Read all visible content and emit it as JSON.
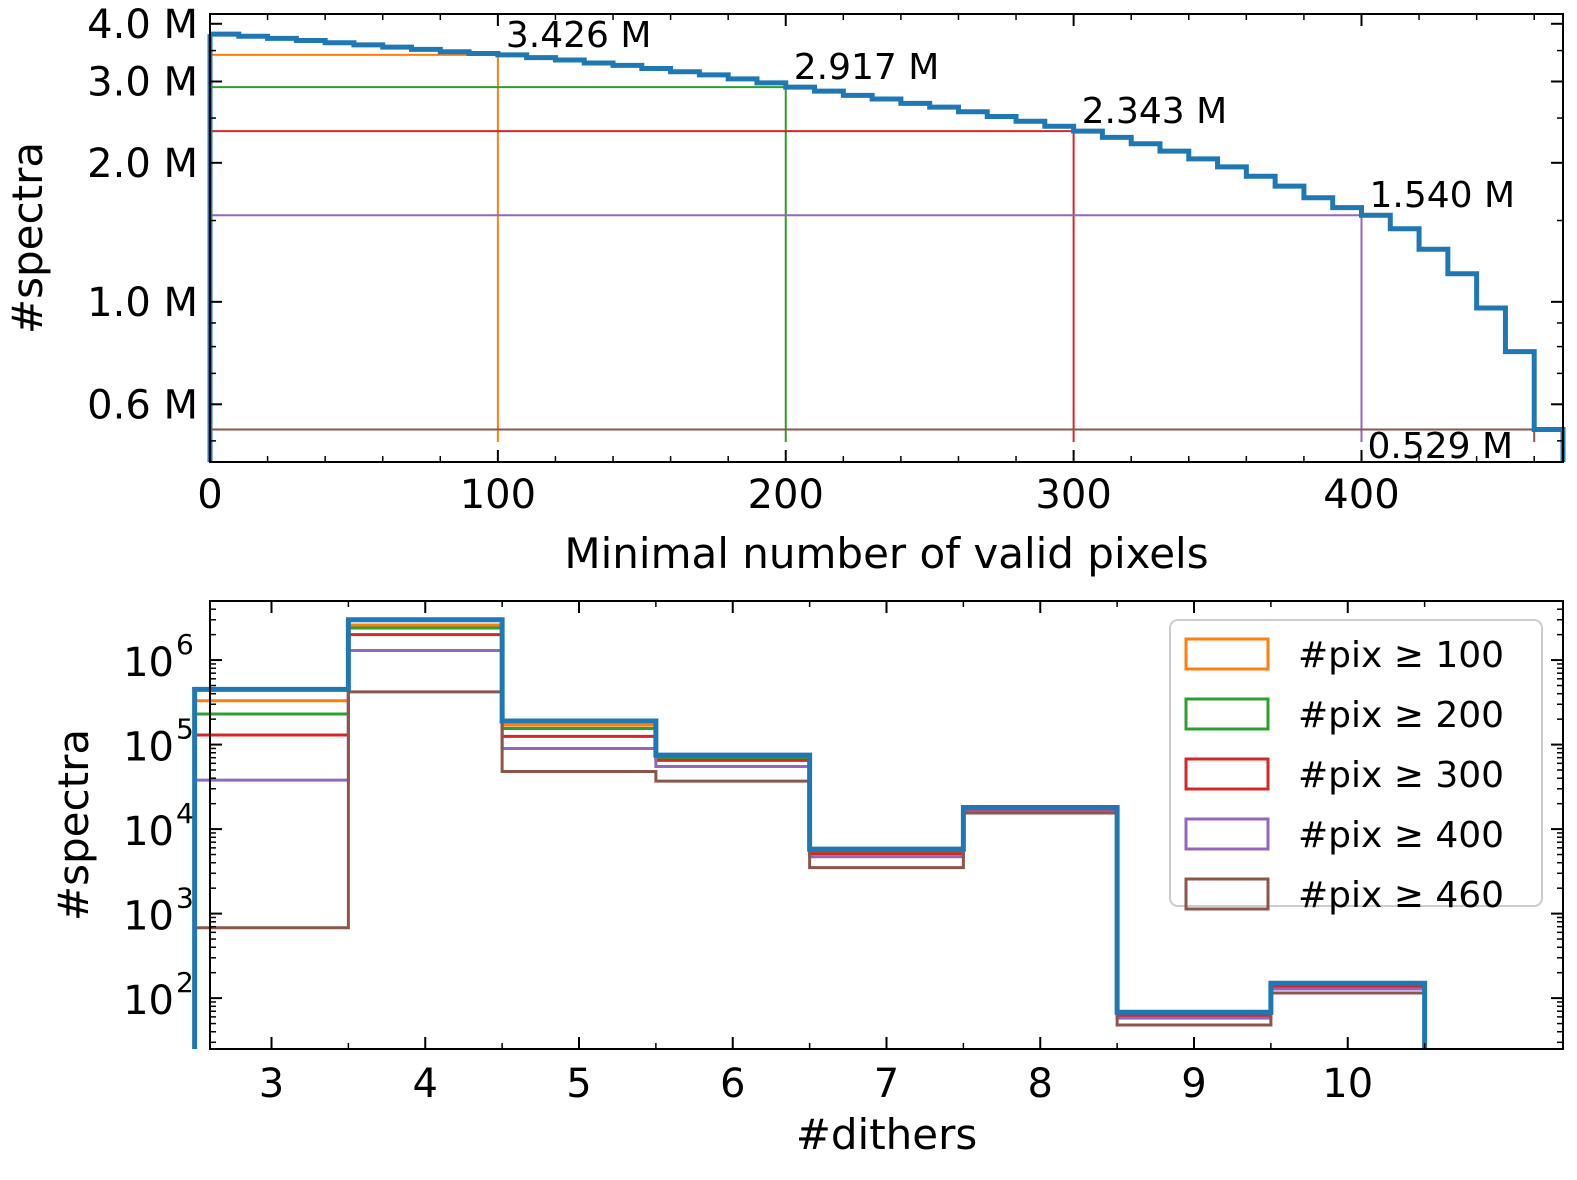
{
  "colors": {
    "all": "#1f77b4",
    "pix100": "#ff7f0e",
    "pix200": "#2ca02c",
    "pix300": "#d62728",
    "pix400": "#9467bd",
    "pix460": "#8c564b"
  },
  "chart_data": [
    {
      "type": "line",
      "step": true,
      "xlabel": "Minimal number of valid pixels",
      "ylabel": "#spectra",
      "xlim": [
        0,
        470
      ],
      "ylim": [
        0.45,
        4.2
      ],
      "yscale": "log",
      "xticks": [
        "0",
        "100",
        "200",
        "300",
        "400"
      ],
      "yticks": [
        "0.6 M",
        "1.0 M",
        "2.0 M",
        "3.0 M",
        "4.0 M"
      ],
      "series": [
        {
          "color_key": "all",
          "x": [
            0,
            10,
            20,
            30,
            40,
            50,
            60,
            70,
            80,
            90,
            100,
            110,
            120,
            130,
            140,
            150,
            160,
            170,
            180,
            190,
            200,
            210,
            220,
            230,
            240,
            250,
            260,
            270,
            280,
            290,
            300,
            310,
            320,
            330,
            340,
            350,
            360,
            370,
            380,
            390,
            400,
            410,
            420,
            430,
            440,
            450,
            460,
            470
          ],
          "y": [
            3.8,
            3.76,
            3.72,
            3.68,
            3.64,
            3.6,
            3.56,
            3.52,
            3.48,
            3.45,
            3.426,
            3.38,
            3.34,
            3.29,
            3.25,
            3.2,
            3.15,
            3.1,
            3.04,
            2.98,
            2.917,
            2.86,
            2.8,
            2.75,
            2.69,
            2.64,
            2.58,
            2.52,
            2.46,
            2.4,
            2.343,
            2.27,
            2.2,
            2.12,
            2.04,
            1.96,
            1.87,
            1.78,
            1.68,
            1.6,
            1.54,
            1.44,
            1.3,
            1.15,
            0.97,
            0.78,
            0.529,
            0.529
          ]
        }
      ],
      "thresholds": [
        {
          "x": 100,
          "y": 3.426,
          "label": "3.426 M",
          "color_key": "pix100"
        },
        {
          "x": 200,
          "y": 2.917,
          "label": "2.917 M",
          "color_key": "pix200"
        },
        {
          "x": 300,
          "y": 2.343,
          "label": "2.343 M",
          "color_key": "pix300"
        },
        {
          "x": 400,
          "y": 1.54,
          "label": "1.540 M",
          "color_key": "pix400"
        },
        {
          "x": 460,
          "y": 0.529,
          "label": "0.529 M",
          "color_key": "pix460"
        }
      ]
    },
    {
      "type": "line",
      "step": true,
      "xlabel": "#dithers",
      "ylabel": "#spectra",
      "xlim": [
        2.6,
        11.4
      ],
      "ylim": [
        25,
        5000000
      ],
      "yscale": "log",
      "categories": [
        3,
        4,
        5,
        6,
        7,
        8,
        9,
        10
      ],
      "xticks": [
        "3",
        "4",
        "5",
        "6",
        "7",
        "8",
        "9",
        "10"
      ],
      "yticks": [
        {
          "base": "10",
          "exp": "2"
        },
        {
          "base": "10",
          "exp": "3"
        },
        {
          "base": "10",
          "exp": "4"
        },
        {
          "base": "10",
          "exp": "5"
        },
        {
          "base": "10",
          "exp": "6"
        }
      ],
      "legend_position": "top-right",
      "series": [
        {
          "name": "#pix ≥ 100",
          "color_key": "pix100",
          "values": [
            330000,
            2600000,
            170000,
            70000,
            5500,
            17000,
            65,
            140
          ]
        },
        {
          "name": "#pix ≥ 200",
          "color_key": "pix200",
          "values": [
            230000,
            2400000,
            155000,
            68000,
            5300,
            17000,
            63,
            138
          ]
        },
        {
          "name": "#pix ≥ 300",
          "color_key": "pix300",
          "values": [
            130000,
            2000000,
            125000,
            65000,
            5100,
            16500,
            62,
            135
          ]
        },
        {
          "name": "#pix ≥ 400",
          "color_key": "pix400",
          "values": [
            38000,
            1300000,
            90000,
            55000,
            4700,
            16000,
            58,
            128
          ]
        },
        {
          "name": "#pix ≥ 460",
          "color_key": "pix460",
          "values": [
            680,
            420000,
            48000,
            37000,
            3500,
            15500,
            48,
            115
          ]
        },
        {
          "color_key": "all",
          "values": [
            450000,
            3000000,
            190000,
            75000,
            5800,
            18000,
            68,
            150
          ]
        }
      ]
    }
  ]
}
